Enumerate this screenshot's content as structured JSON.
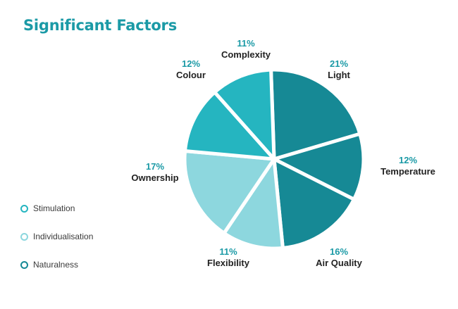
{
  "chart_data": {
    "type": "pie",
    "title": "Significant Factors",
    "slices": [
      {
        "label": "Light",
        "percent": "21%",
        "value": 21,
        "group": "Naturalness",
        "color": "#168995"
      },
      {
        "label": "Temperature",
        "percent": "12%",
        "value": 12,
        "group": "Naturalness",
        "color": "#168995"
      },
      {
        "label": "Air Quality",
        "percent": "16%",
        "value": 16,
        "group": "Naturalness",
        "color": "#168995"
      },
      {
        "label": "Flexibility",
        "percent": "11%",
        "value": 11,
        "group": "Individualisation",
        "color": "#8dd7de"
      },
      {
        "label": "Ownership",
        "percent": "17%",
        "value": 17,
        "group": "Individualisation",
        "color": "#8dd7de"
      },
      {
        "label": "Colour",
        "percent": "12%",
        "value": 12,
        "group": "Stimulation",
        "color": "#25b5c0"
      },
      {
        "label": "Complexity",
        "percent": "11%",
        "value": 11,
        "group": "Stimulation",
        "color": "#25b5c0"
      }
    ],
    "legend": {
      "placement": "bottom-left",
      "items": [
        {
          "label": "Stimulation",
          "color": "#25b5c0"
        },
        {
          "label": "Individualisation",
          "color": "#8dd7de"
        },
        {
          "label": "Naturalness",
          "color": "#168995"
        }
      ]
    }
  },
  "colors": {
    "title": "#1b9aa6",
    "percent_text": "#1b9aa6",
    "name_text": "#222222"
  }
}
